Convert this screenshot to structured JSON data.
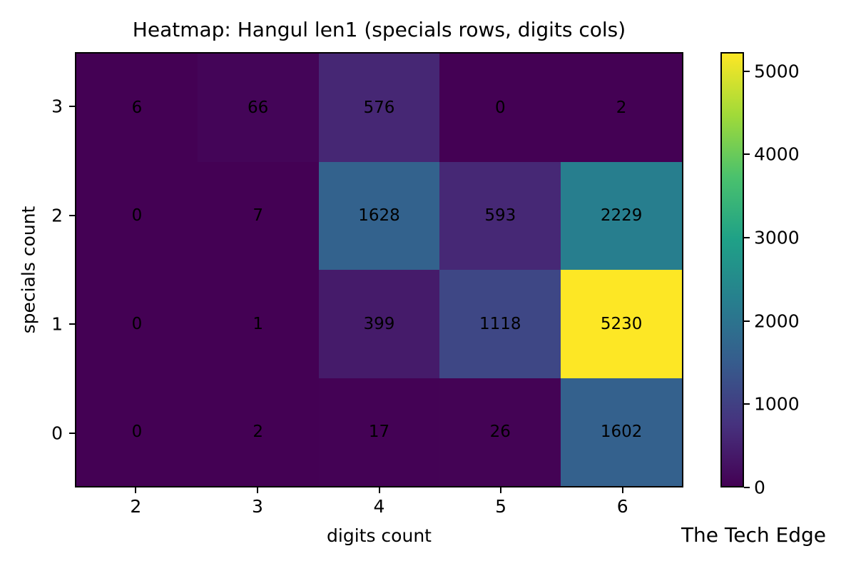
{
  "watermark": "The Tech Edge",
  "chart_data": {
    "type": "heatmap",
    "title": "Heatmap: Hangul len1 (specials rows, digits cols)",
    "xlabel": "digits count",
    "ylabel": "specials count",
    "x_tick_labels": [
      "2",
      "3",
      "4",
      "5",
      "6"
    ],
    "y_tick_labels": [
      "3",
      "2",
      "1",
      "0"
    ],
    "rows": [
      {
        "y": "3",
        "values": [
          6,
          66,
          576,
          0,
          2
        ]
      },
      {
        "y": "2",
        "values": [
          0,
          7,
          1628,
          593,
          2229
        ]
      },
      {
        "y": "1",
        "values": [
          0,
          1,
          399,
          1118,
          5230
        ]
      },
      {
        "y": "0",
        "values": [
          0,
          2,
          17,
          26,
          1602
        ]
      }
    ],
    "vmin": 0,
    "vmax": 5230,
    "colorbar": {
      "position": "right",
      "tick_values": [
        0,
        1000,
        2000,
        3000,
        4000,
        5000
      ],
      "tick_labels": [
        "0",
        "1000",
        "2000",
        "3000",
        "4000",
        "5000"
      ]
    },
    "colormap": {
      "name": "viridis",
      "stops": [
        "#440154",
        "#46327e",
        "#365c8d",
        "#277f8e",
        "#1fa187",
        "#4ac16d",
        "#a0da39",
        "#fde725"
      ]
    },
    "annotation_color": "#000000",
    "spine_color": "#000000",
    "background": "#ffffff",
    "grid": false
  }
}
